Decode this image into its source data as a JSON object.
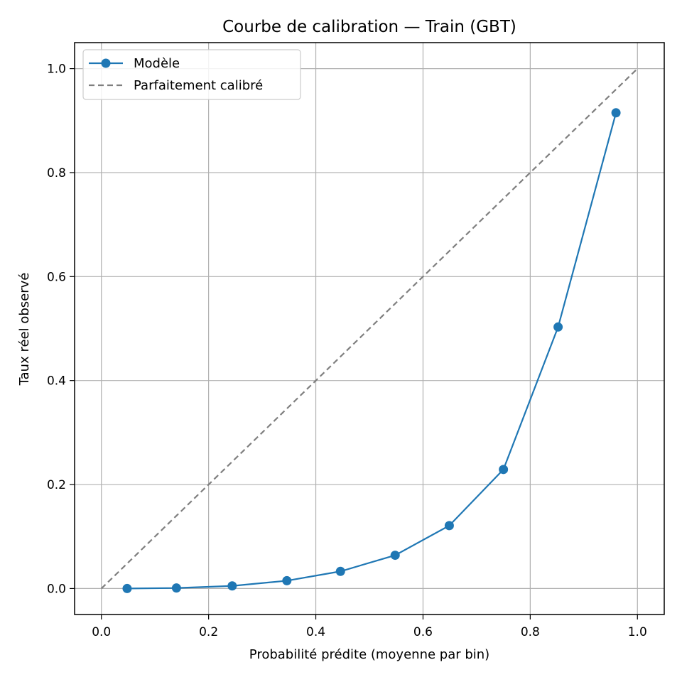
{
  "chart_data": {
    "type": "line",
    "title": "Courbe de calibration — Train (GBT)",
    "xlabel": "Probabilité prédite (moyenne par bin)",
    "ylabel": "Taux réel observé",
    "xlim": [
      -0.05,
      1.05
    ],
    "ylim": [
      -0.05,
      1.05
    ],
    "xticks": [
      0.0,
      0.2,
      0.4,
      0.6,
      0.8,
      1.0
    ],
    "yticks": [
      0.0,
      0.2,
      0.4,
      0.6,
      0.8,
      1.0
    ],
    "xtick_labels": [
      "0.0",
      "0.2",
      "0.4",
      "0.6",
      "0.8",
      "1.0"
    ],
    "ytick_labels": [
      "0.0",
      "0.2",
      "0.4",
      "0.6",
      "0.8",
      "1.0"
    ],
    "grid": true,
    "legend_position": "top-left",
    "series": [
      {
        "name": "Modèle",
        "style": "solid-line-with-circle-markers",
        "color": "#1f77b4",
        "x": [
          0.048,
          0.14,
          0.244,
          0.346,
          0.446,
          0.548,
          0.649,
          0.75,
          0.852,
          0.96
        ],
        "y": [
          0.0,
          0.001,
          0.005,
          0.015,
          0.033,
          0.064,
          0.121,
          0.229,
          0.503,
          0.915
        ]
      },
      {
        "name": "Parfaitement calibré",
        "style": "dashed-line",
        "color": "#7f7f7f",
        "x": [
          0.0,
          1.0
        ],
        "y": [
          0.0,
          1.0
        ]
      }
    ]
  }
}
